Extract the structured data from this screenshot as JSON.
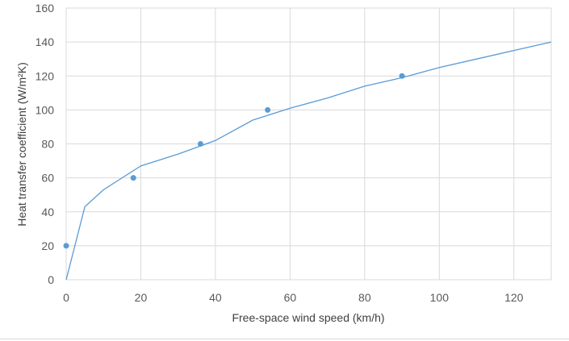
{
  "chart_data": {
    "type": "scatter",
    "xlabel": "Free-space wind speed (km/h)",
    "ylabel": "Heat transfer coefficient (W/m²K)",
    "xlim": [
      0,
      130
    ],
    "ylim": [
      0,
      160
    ],
    "x_ticks": [
      0,
      20,
      40,
      60,
      80,
      100,
      120
    ],
    "y_ticks": [
      0,
      20,
      40,
      60,
      80,
      100,
      120,
      140,
      160
    ],
    "grid": true,
    "colors": {
      "series": "#5b9bd5",
      "grid": "#d9d9d9",
      "tick_text": "#595959"
    },
    "series": [
      {
        "kind": "markers",
        "x": [
          0,
          18,
          36,
          54,
          90
        ],
        "y": [
          20,
          60,
          80,
          100,
          120
        ]
      },
      {
        "kind": "line",
        "x": [
          0,
          5,
          10,
          20,
          30,
          40,
          50,
          60,
          70,
          80,
          90,
          100,
          110,
          120,
          130
        ],
        "y": [
          0,
          43,
          53,
          67,
          74,
          82,
          94,
          101,
          107,
          114,
          119,
          125,
          130,
          135,
          140
        ]
      }
    ]
  }
}
